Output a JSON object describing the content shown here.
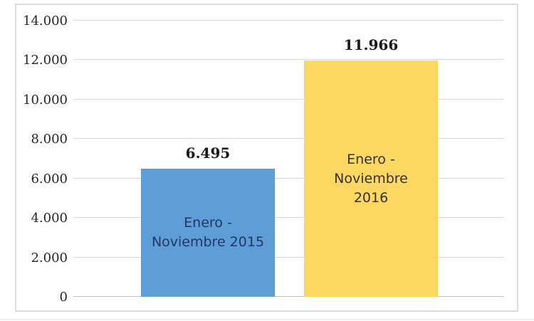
{
  "chart_data": {
    "type": "bar",
    "title": "",
    "xlabel": "",
    "ylabel": "",
    "categories": [
      "Enero - Noviembre 2015",
      "Enero - Noviembre 2016"
    ],
    "values": [
      6495,
      11966
    ],
    "value_labels": [
      "6.495",
      "11.966"
    ],
    "bar_text_lines": [
      "Enero -\nNoviembre 2015",
      "Enero -\nNoviembre\n2016"
    ],
    "ylim": [
      0,
      14000
    ],
    "ytick_values": [
      0,
      2000,
      4000,
      6000,
      8000,
      10000,
      12000,
      14000
    ],
    "ytick_labels": [
      "0",
      "2.000",
      "4.000",
      "6.000",
      "8.000",
      "10.000",
      "12.000",
      "14.000"
    ],
    "grid": true,
    "legend_position": "none"
  },
  "colors": {
    "bar_fills": [
      "#5F9DD8",
      "#FCD862"
    ],
    "bar_text": [
      "#1F3864",
      "#33302E"
    ],
    "value_label": "#1A1A1A",
    "axis_label": "#262626",
    "gridline": "#D6D6D6",
    "axis_line": "#BFBFBF",
    "frame_border": "#DCDCDC",
    "background": "#FFFFFF"
  }
}
